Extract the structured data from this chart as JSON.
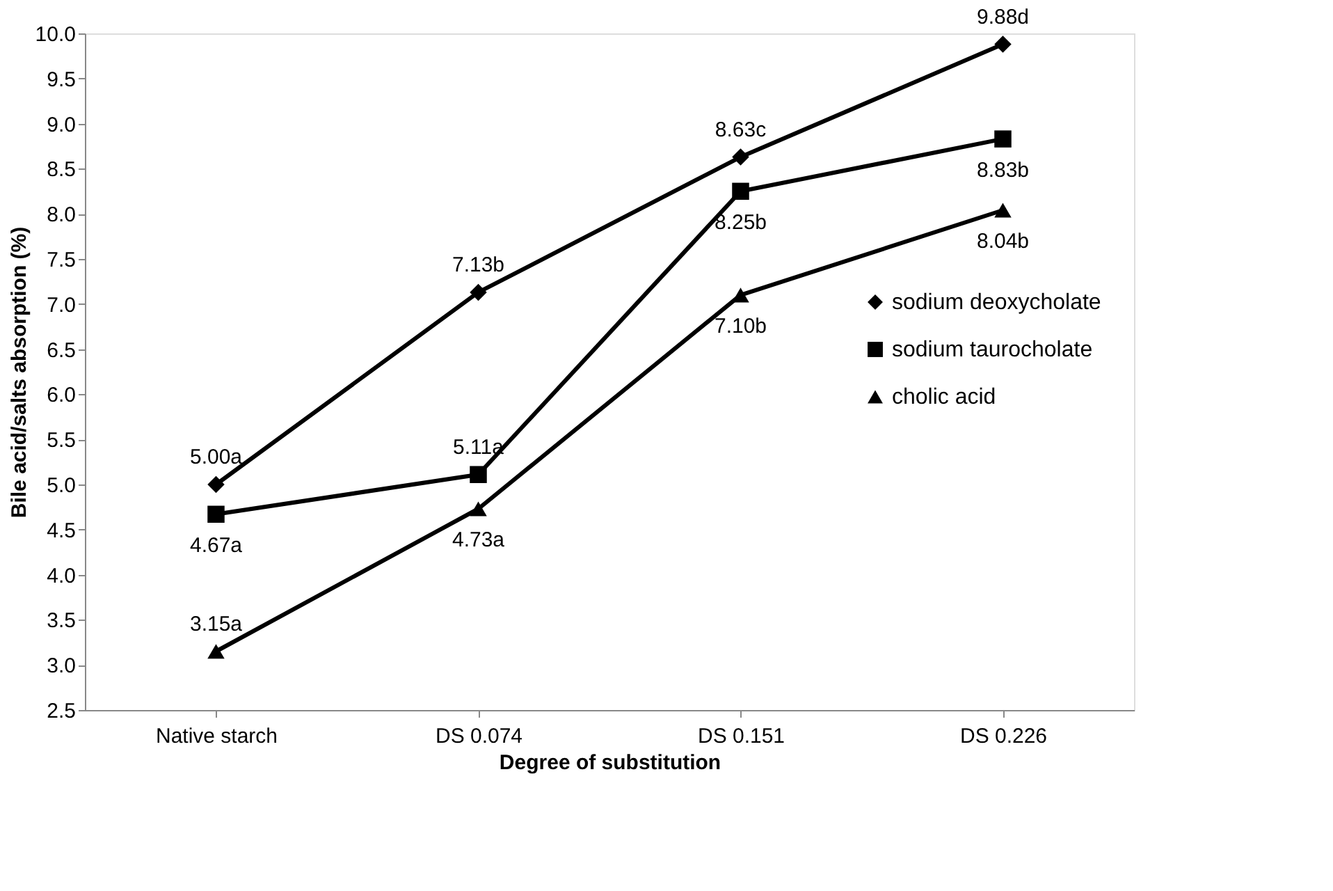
{
  "chart_data": {
    "type": "line",
    "xlabel": "Degree of substitution",
    "ylabel": "Bile acid/salts absorption (%)",
    "categories": [
      "Native starch",
      "DS 0.074",
      "DS 0.151",
      "DS 0.226"
    ],
    "series": [
      {
        "name": "sodium deoxycholate",
        "color": "#000000",
        "marker": "diamond",
        "values": [
          5.0,
          7.13,
          8.63,
          9.88
        ],
        "value_labels": [
          "5.00a",
          "7.13b",
          "8.63c",
          "9.88d"
        ]
      },
      {
        "name": "sodium taurocholate",
        "color": "#000000",
        "marker": "square",
        "values": [
          4.67,
          5.11,
          8.25,
          8.83
        ],
        "value_labels": [
          "4.67a",
          "5.11a",
          "8.25b",
          "8.83b"
        ]
      },
      {
        "name": "cholic acid",
        "color": "#000000",
        "marker": "triangle",
        "values": [
          3.15,
          4.73,
          7.1,
          8.04
        ],
        "value_labels": [
          "3.15a",
          "4.73a",
          "7.10b",
          "8.04b"
        ]
      }
    ],
    "ylim": [
      2.5,
      10.0
    ],
    "yticks": [
      2.5,
      {
        "value": 3,
        "label": "3.0"
      },
      3.5,
      {
        "value": 4,
        "label": "4.0"
      },
      4.5,
      {
        "value": 5,
        "label": "5.0"
      },
      5.5,
      {
        "value": 6,
        "label": "6.0"
      },
      6.5,
      {
        "value": 7,
        "label": "7.0"
      },
      7.5,
      {
        "value": 8,
        "label": "8.0"
      },
      8.5,
      {
        "value": 9,
        "label": "9.0"
      },
      9.5,
      {
        "value": 10,
        "label": "10.0"
      }
    ],
    "grid": false,
    "legend": "right",
    "line_style": "solid"
  }
}
